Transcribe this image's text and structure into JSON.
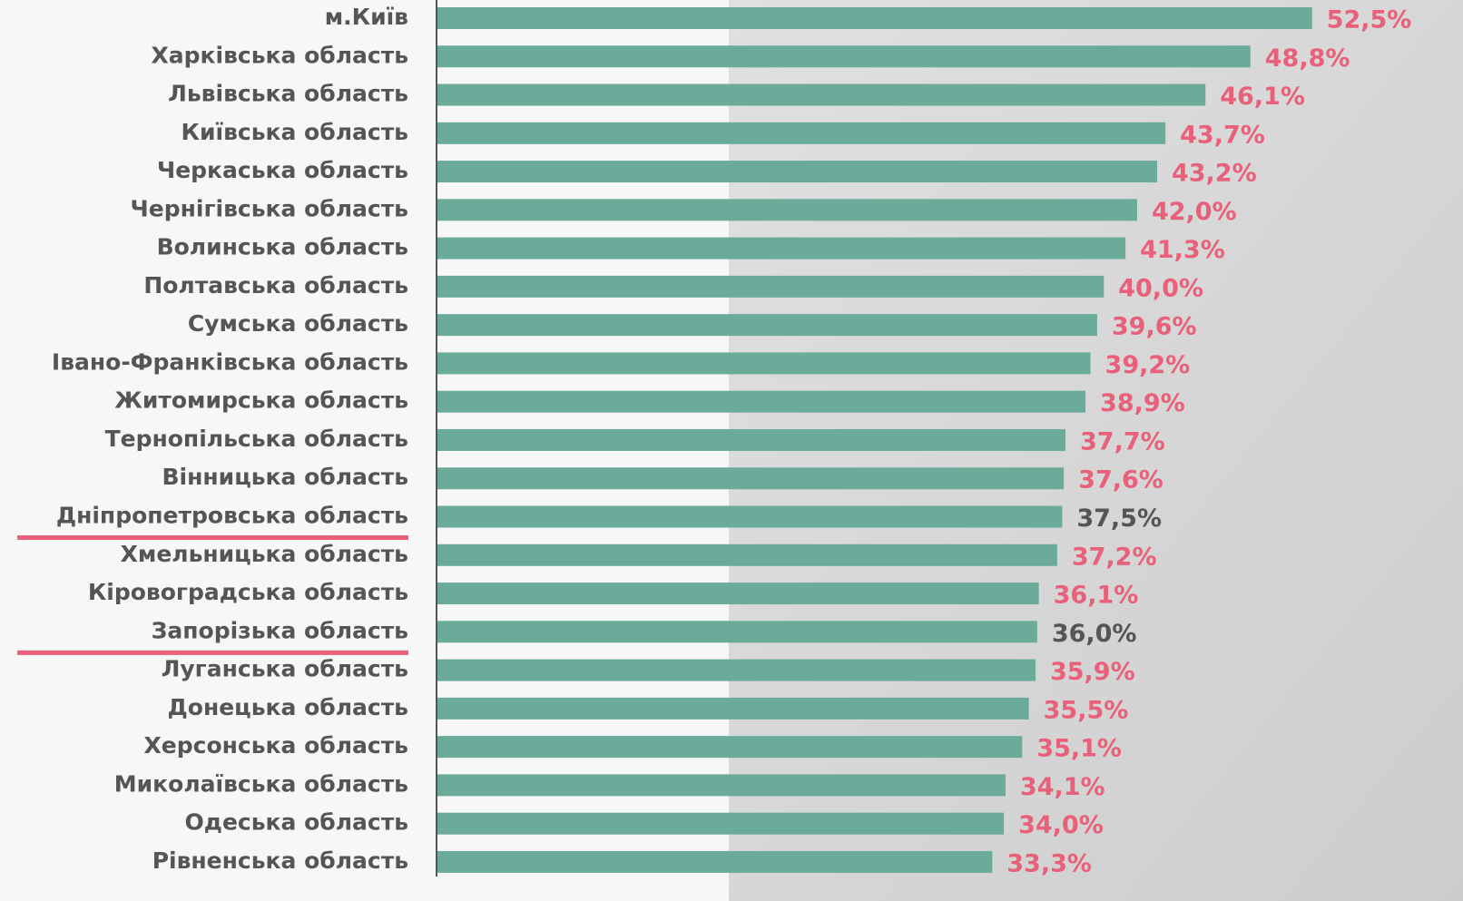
{
  "chart_data": {
    "type": "barh",
    "categories": [
      "м.Київ",
      "Харківська область",
      "Львівська область",
      "Київська область",
      "Черкаська область",
      "Чернігівська область",
      "Волинська область",
      "Полтавська область",
      "Сумська область",
      "Івано-Франківська область",
      "Житомирська область",
      "Тернопільська область",
      "Вінницька область",
      "Дніпропетровська область",
      "Хмельницька область",
      "Кіровоградська область",
      "Запорізька область",
      "Луганська область",
      "Донецька область",
      "Херсонська область",
      "Миколаївська область",
      "Одеська область",
      "Рівненська область"
    ],
    "values": [
      52.5,
      48.8,
      46.1,
      43.7,
      43.2,
      42.0,
      41.3,
      40.0,
      39.6,
      39.2,
      38.9,
      37.7,
      37.6,
      37.5,
      37.2,
      36.1,
      36.0,
      35.9,
      35.5,
      35.1,
      34.1,
      34.0,
      33.3
    ],
    "value_labels": [
      "52,5%",
      "48,8%",
      "46,1%",
      "43,7%",
      "43,2%",
      "42,0%",
      "41,3%",
      "40,0%",
      "39,6%",
      "39,2%",
      "38,9%",
      "37,7%",
      "37,6%",
      "37,5%",
      "37,2%",
      "36,1%",
      "36,0%",
      "35,9%",
      "35,5%",
      "35,1%",
      "34,1%",
      "34,0%",
      "33,3%"
    ],
    "color": "#6aab9a",
    "value_label_colors": [
      "#e8607a",
      "#e8607a",
      "#e8607a",
      "#e8607a",
      "#e8607a",
      "#e8607a",
      "#e8607a",
      "#e8607a",
      "#e8607a",
      "#e8607a",
      "#e8607a",
      "#e8607a",
      "#e8607a",
      "#555555",
      "#e8607a",
      "#e8607a",
      "#555555",
      "#e8607a",
      "#e8607a",
      "#e8607a",
      "#e8607a",
      "#e8607a",
      "#e8607a"
    ],
    "highlighted": [
      false,
      false,
      false,
      false,
      false,
      false,
      false,
      false,
      false,
      false,
      false,
      false,
      false,
      true,
      false,
      false,
      true,
      false,
      false,
      false,
      false,
      false,
      false
    ],
    "highlight_color": "#e8607a",
    "xlim": [
      0,
      59
    ]
  }
}
